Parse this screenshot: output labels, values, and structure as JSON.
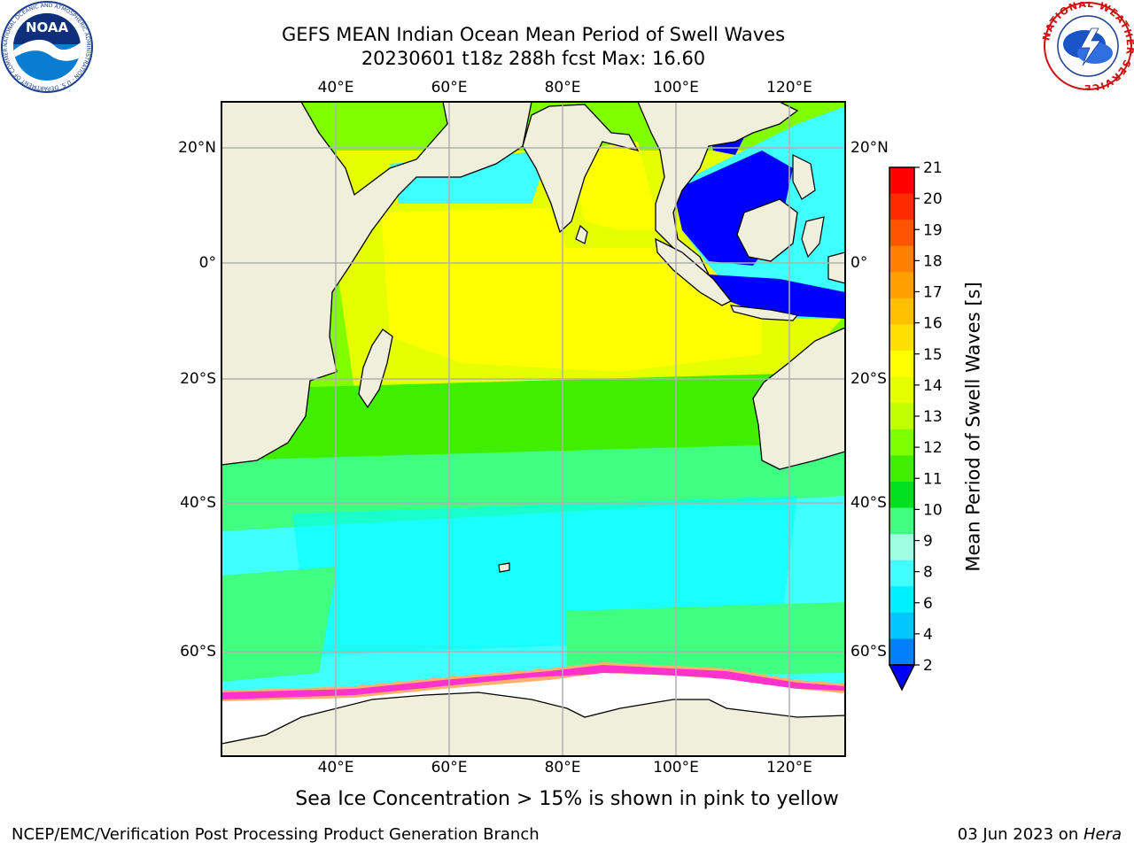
{
  "title": {
    "line1": "GEFS MEAN Indian Ocean Mean Period of Swell Waves",
    "line2": "20230601 t18z 288h fcst   Max: 16.60"
  },
  "map": {
    "lon_ticks": [
      "40°E",
      "60°E",
      "80°E",
      "100°E",
      "120°E"
    ],
    "lat_ticks": [
      "20°N",
      "0°",
      "20°S",
      "40°S",
      "60°S"
    ],
    "colors": {
      "land": "#f0efdc",
      "grid": "#b0b0b0",
      "ice": "#ffffff",
      "ice_edge_pink": "#ff33cc",
      "ice_edge_orange": "#ffb070"
    }
  },
  "colorbar": {
    "label": "Mean Period of Swell Waves [s]",
    "ticks": [
      "21",
      "20",
      "19",
      "18",
      "17",
      "16",
      "15",
      "14",
      "13",
      "12",
      "11",
      "10",
      "9",
      "8",
      "6",
      "4",
      "2"
    ],
    "colors_top_to_bottom": [
      "#ff0000",
      "#ff2a00",
      "#ff5500",
      "#ff7f00",
      "#ffa000",
      "#ffc000",
      "#ffe000",
      "#ffff00",
      "#e6ff00",
      "#c0ff00",
      "#80ff00",
      "#40ee00",
      "#00e020",
      "#40ff80",
      "#a0ffe0",
      "#40ffff",
      "#00f0ff",
      "#00c8ff",
      "#0080ff"
    ],
    "under_color": "#0000ff"
  },
  "note": "Sea Ice Concentration > 15% is shown in pink to yellow",
  "footer": {
    "left": "NCEP/EMC/Verification Post Processing Product Generation Branch",
    "right_date": "03 Jun 2023 on ",
    "right_host": "Hera"
  },
  "logos": {
    "noaa_text": "NOAA",
    "noaa_ring_text": "NATIONAL OCEANIC AND ATMOSPHERIC ADMINISTRATION · U.S. DEPARTMENT OF COMMERCE",
    "nws_ring_text": "NATIONAL WEATHER SERVICE"
  }
}
